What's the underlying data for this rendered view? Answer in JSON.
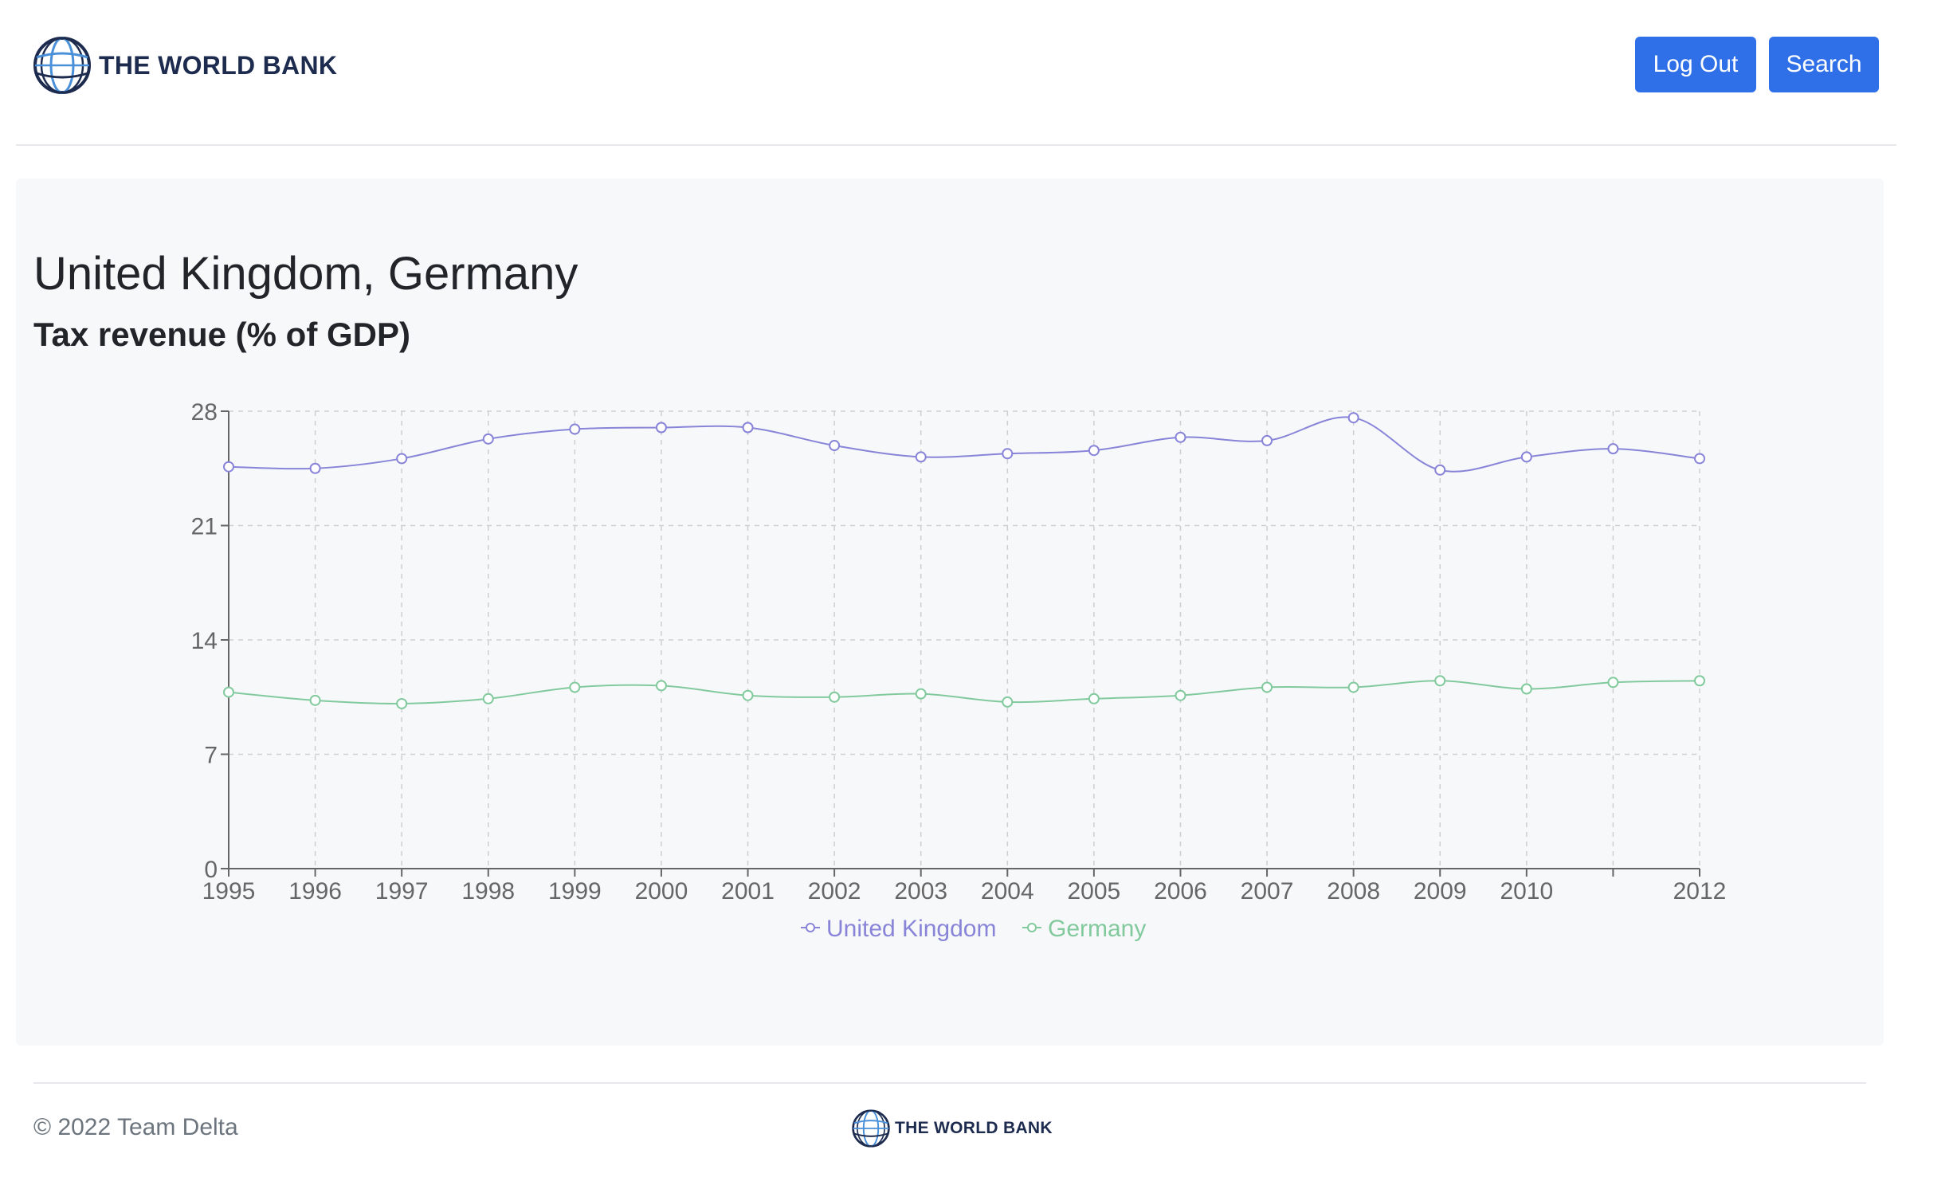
{
  "header": {
    "brand": "THE WORLD BANK",
    "logout_label": "Log Out",
    "search_label": "Search"
  },
  "main": {
    "title": "United Kingdom, Germany",
    "indicator": "Tax revenue (% of GDP)"
  },
  "footer": {
    "copyright": "© 2022 Team Delta",
    "brand": "THE WORLD BANK"
  },
  "colors": {
    "accent": "#2f6fe8",
    "brand": "#1d2b4f",
    "uk_series": "#8884d8",
    "germany_series": "#82ca9d"
  },
  "chart_data": {
    "type": "line",
    "title": "",
    "xlabel": "",
    "ylabel": "",
    "x": [
      1995,
      1996,
      1997,
      1998,
      1999,
      2000,
      2001,
      2002,
      2003,
      2004,
      2005,
      2006,
      2007,
      2008,
      2009,
      2010,
      2011,
      2012
    ],
    "x_tick_labels": [
      "1995",
      "1996",
      "1997",
      "1998",
      "1999",
      "2000",
      "2001",
      "2002",
      "2003",
      "2004",
      "2005",
      "2006",
      "2007",
      "2008",
      "2009",
      "2010",
      "",
      "2012"
    ],
    "series": [
      {
        "name": "United Kingdom",
        "color": "#8884d8",
        "values": [
          24.6,
          24.5,
          25.1,
          26.3,
          26.9,
          27.0,
          27.0,
          25.9,
          25.2,
          25.4,
          25.6,
          26.4,
          26.2,
          27.6,
          24.4,
          25.2,
          25.7,
          25.1
        ]
      },
      {
        "name": "Germany",
        "color": "#82ca9d",
        "values": [
          10.8,
          10.3,
          10.1,
          10.4,
          11.1,
          11.2,
          10.6,
          10.5,
          10.7,
          10.2,
          10.4,
          10.6,
          11.1,
          11.1,
          11.5,
          11.0,
          11.4,
          11.5
        ]
      }
    ],
    "ylim": [
      0,
      28
    ],
    "y_ticks": [
      0,
      7,
      14,
      21,
      28
    ],
    "grid": true,
    "legend": "bottom-center"
  }
}
